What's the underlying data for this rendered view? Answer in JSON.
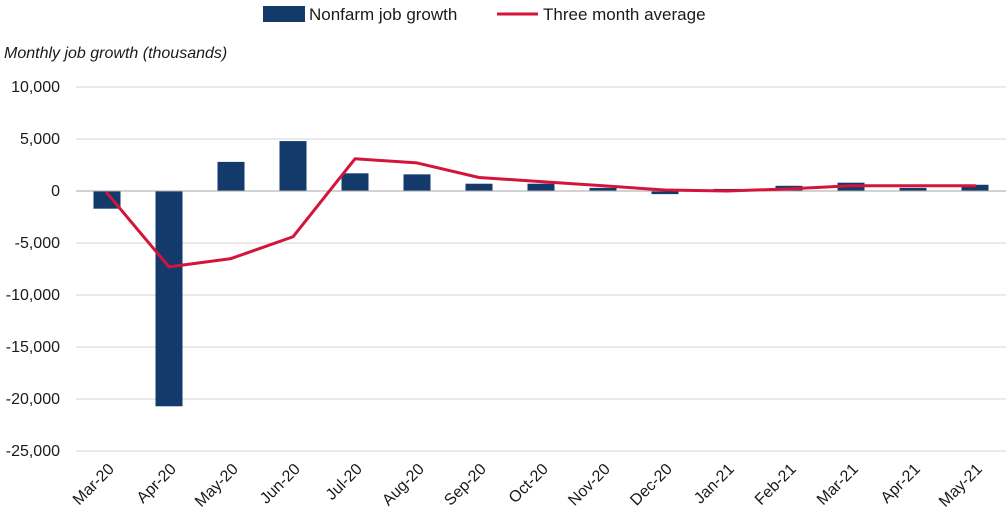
{
  "chart_data": {
    "type": "bar",
    "title": "",
    "xlabel": "",
    "ylabel": "Monthly job growth (thousands)",
    "categories": [
      "Mar-20",
      "Apr-20",
      "May-20",
      "Jun-20",
      "Jul-20",
      "Aug-20",
      "Sep-20",
      "Oct-20",
      "Nov-20",
      "Dec-20",
      "Jan-21",
      "Feb-21",
      "Mar-21",
      "Apr-21",
      "May-21"
    ],
    "series": [
      {
        "name": "Nonfarm job growth",
        "type": "bar",
        "color": "#133a6b",
        "values": [
          -1700,
          -20700,
          2800,
          4800,
          1700,
          1600,
          700,
          700,
          300,
          -300,
          200,
          500,
          800,
          300,
          600
        ]
      },
      {
        "name": "Three month average",
        "type": "line",
        "color": "#d4153b",
        "values": [
          -200,
          -7300,
          -6500,
          -4400,
          3100,
          2700,
          1300,
          900,
          500,
          100,
          0,
          200,
          500,
          500,
          500
        ]
      }
    ],
    "ylim": [
      -25000,
      10000
    ],
    "yticks": [
      10000,
      5000,
      0,
      -5000,
      -10000,
      -15000,
      -20000,
      -25000
    ],
    "ytick_labels": [
      "10,000",
      "5,000",
      "0",
      "-5,000",
      "-10,000",
      "-15,000",
      "-20,000",
      "-25,000"
    ],
    "grid": true,
    "legend": "top-center"
  }
}
